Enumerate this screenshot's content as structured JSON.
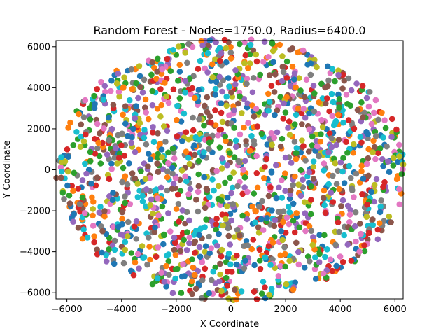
{
  "chart_data": {
    "type": "scatter",
    "title": "Random Forest - Nodes=1750.0, Radius=6400.0",
    "xlabel": "X Coordinate",
    "ylabel": "Y Coordinate",
    "xlim": [
      -6400,
      6300
    ],
    "ylim": [
      -6300,
      6300
    ],
    "xticks": [
      -6000,
      -4000,
      -2000,
      0,
      2000,
      4000,
      6000
    ],
    "yticks": [
      -6000,
      -4000,
      -2000,
      0,
      2000,
      4000,
      6000
    ],
    "xtick_labels": [
      "−6000",
      "−4000",
      "−2000",
      "0",
      "2000",
      "4000",
      "6000"
    ],
    "ytick_labels": [
      "−6000",
      "−4000",
      "−2000",
      "0",
      "2000",
      "4000",
      "6000"
    ],
    "grid": false,
    "legend": "none",
    "marker_colors": [
      "#1f77b4",
      "#ff7f0e",
      "#2ca02c",
      "#d62728",
      "#9467bd",
      "#8c564b",
      "#e377c2",
      "#7f7f7f",
      "#bcbd22",
      "#17becf"
    ],
    "node_count": 1750,
    "radius": 6400,
    "points_note": "Nodes uniformly scattered inside a circle of radius ≈6400 centered at (0,0); each node colored from the 10-color palette.",
    "points": [
      {
        "x": -6100,
        "y": 700
      },
      {
        "x": -5900,
        "y": -1800
      },
      {
        "x": -5600,
        "y": 1500
      },
      {
        "x": -5400,
        "y": -2800
      },
      {
        "x": -5200,
        "y": 2600
      },
      {
        "x": -4900,
        "y": -3900
      },
      {
        "x": -4600,
        "y": 3800
      },
      {
        "x": -4300,
        "y": -4400
      },
      {
        "x": -3900,
        "y": 4500
      },
      {
        "x": -3600,
        "y": -5000
      },
      {
        "x": -3000,
        "y": 5200
      },
      {
        "x": -2700,
        "y": -5400
      },
      {
        "x": -2000,
        "y": 5600
      },
      {
        "x": -1500,
        "y": -5900
      },
      {
        "x": -800,
        "y": 6000
      },
      {
        "x": -200,
        "y": -6000
      },
      {
        "x": 500,
        "y": 6200
      },
      {
        "x": 900,
        "y": -5900
      },
      {
        "x": 1600,
        "y": 5900
      },
      {
        "x": 2100,
        "y": -5600
      },
      {
        "x": 2800,
        "y": 5600
      },
      {
        "x": 3200,
        "y": -5300
      },
      {
        "x": 3700,
        "y": 4800
      },
      {
        "x": 4100,
        "y": -4500
      },
      {
        "x": 4600,
        "y": 4200
      },
      {
        "x": 5000,
        "y": -3400
      },
      {
        "x": 5300,
        "y": 3400
      },
      {
        "x": 5600,
        "y": -2500
      },
      {
        "x": 5900,
        "y": 1800
      },
      {
        "x": 6100,
        "y": -900
      },
      {
        "x": 6200,
        "y": 500
      },
      {
        "x": 6100,
        "y": -300
      }
    ]
  }
}
